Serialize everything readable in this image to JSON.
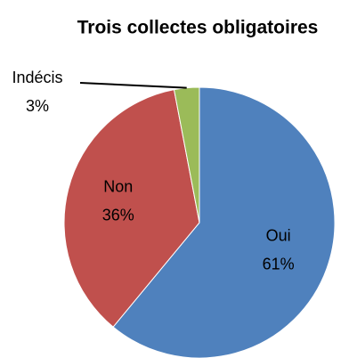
{
  "chart_data": {
    "type": "pie",
    "title": "Trois collectes obligatoires",
    "categories": [
      "Oui",
      "Non",
      "Indécis"
    ],
    "values": [
      61,
      36,
      3
    ],
    "value_labels": [
      "61%",
      "36%",
      "3%"
    ],
    "colors": [
      "#4f81bd",
      "#c0504d",
      "#9bbb59"
    ]
  }
}
